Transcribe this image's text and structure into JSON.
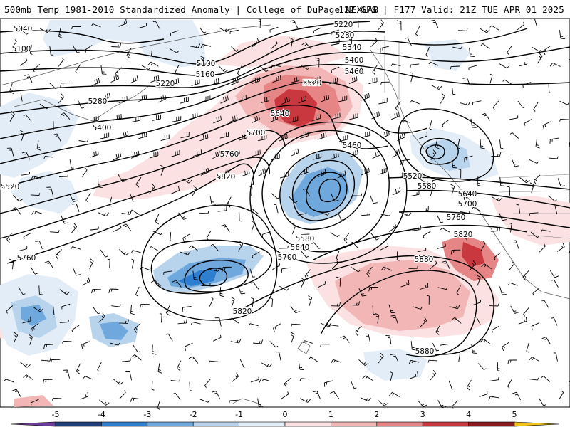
{
  "header": {
    "title_left": "500mb Temp 1981-2010 Standardized Anomaly | College of DuPage NEXLAB",
    "title_right": "12Z GFS | F177 Valid: 21Z TUE APR 01 2025"
  },
  "colorbar": {
    "tick_labels": [
      "-5",
      "-4",
      "-3",
      "-2",
      "-1",
      "0",
      "1",
      "2",
      "3",
      "4",
      "5"
    ],
    "bins": [
      {
        "range": "< -5",
        "color": "#6a3d9a"
      },
      {
        "range": "-5 to -4",
        "color": "#1f3f7a"
      },
      {
        "range": "-4 to -3",
        "color": "#2f7fd0"
      },
      {
        "range": "-3 to -2",
        "color": "#6fa8dc"
      },
      {
        "range": "-2 to -1",
        "color": "#b8d3ec"
      },
      {
        "range": "-1 to 0",
        "color": "#e3edf7"
      },
      {
        "range": "0 to 1",
        "color": "#fbe1e1"
      },
      {
        "range": "1 to 2",
        "color": "#f2b6b6"
      },
      {
        "range": "2 to 3",
        "color": "#e58585"
      },
      {
        "range": "3 to 4",
        "color": "#c9383e"
      },
      {
        "range": "4 to 5",
        "color": "#8b1a1f"
      },
      {
        "range": "> 5",
        "color": "#f0c419"
      }
    ]
  },
  "contour_labels": [
    "5040",
    "5100",
    "5100",
    "5160",
    "5220",
    "5280",
    "5400",
    "5520",
    "5760",
    "5220",
    "5280",
    "5340",
    "5400",
    "5460",
    "5520",
    "5640",
    "5700",
    "5760",
    "5820",
    "5460",
    "5520",
    "5580",
    "5640",
    "5700",
    "5760",
    "5820",
    "5880",
    "5880",
    "5580",
    "5640",
    "5700",
    "5820"
  ],
  "chart_data": {
    "type": "heatmap",
    "field": "500mb temperature standardized anomaly",
    "contour_field": "500mb geopotential height",
    "contour_values": [
      5040,
      5100,
      5160,
      5220,
      5280,
      5340,
      5400,
      5460,
      5520,
      5580,
      5640,
      5700,
      5760,
      5820,
      5880
    ],
    "colorbar_range": [
      -5,
      5
    ],
    "colorbar_ticks": [
      -5,
      -4,
      -3,
      -2,
      -1,
      0,
      1,
      2,
      3,
      4,
      5
    ]
  }
}
